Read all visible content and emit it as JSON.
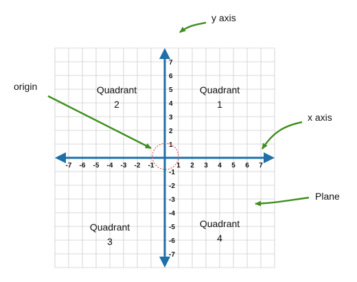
{
  "annotations": {
    "y_axis": "y axis",
    "x_axis": "x axis",
    "origin": "origin",
    "plane": "Plane"
  },
  "quadrants": [
    {
      "line1": "Quadrant",
      "line2": "1"
    },
    {
      "line1": "Quadrant",
      "line2": "2"
    },
    {
      "line1": "Quadrant",
      "line2": "3"
    },
    {
      "line1": "Quadrant",
      "line2": "4"
    }
  ],
  "x_ticks": [
    "-7",
    "-6",
    "-5",
    "-4",
    "-3",
    "-2",
    "-1",
    "1",
    "2",
    "3",
    "4",
    "5",
    "6",
    "7"
  ],
  "y_ticks": [
    "7",
    "6",
    "5",
    "4",
    "3",
    "2",
    "1",
    "-1",
    "-2",
    "-3",
    "-4",
    "-5",
    "-6",
    "-7"
  ],
  "colors": {
    "axis": "#1f6fa8",
    "grid": "#cccccc",
    "pointer": "#3e8e1e",
    "origin_circle": "#d9534f",
    "text": "#111111"
  }
}
